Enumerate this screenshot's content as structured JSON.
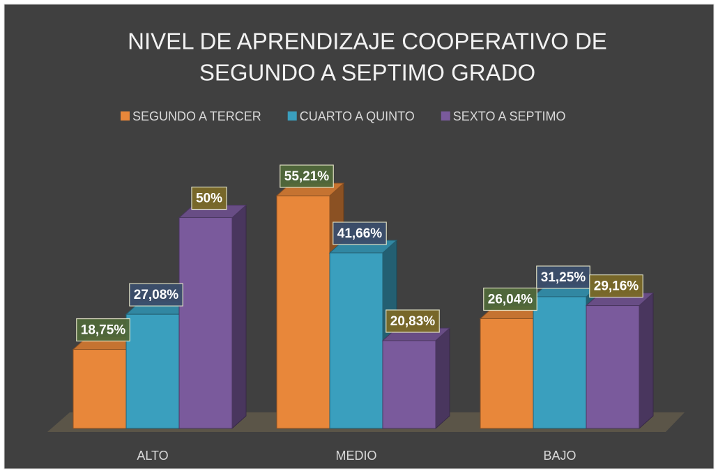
{
  "chart_data": {
    "type": "bar3d",
    "title": [
      "NIVEL DE APRENDIZAJE COOPERATIVO DE",
      "SEGUNDO A SEPTIMO GRADO"
    ],
    "categories": [
      "ALTO",
      "MEDIO",
      "BAJO"
    ],
    "series": [
      {
        "name": "SEGUNDO A TERCER",
        "color": "#e8873a",
        "values": [
          18.75,
          55.21,
          26.04
        ],
        "value_labels": [
          "18,75%",
          "55,21%",
          "26,04%"
        ]
      },
      {
        "name": "CUARTO A QUINTO",
        "color": "#3a9fbe",
        "values": [
          27.08,
          41.66,
          31.25
        ],
        "value_labels": [
          "27,08%",
          "41,66%",
          "31,25%"
        ]
      },
      {
        "name": "SEXTO A SEPTIMO",
        "color": "#7a5a9c",
        "values": [
          50,
          20.83,
          29.16
        ],
        "value_labels": [
          "50%",
          "20,83%",
          "29,16%"
        ]
      }
    ],
    "legend": "top"
  }
}
